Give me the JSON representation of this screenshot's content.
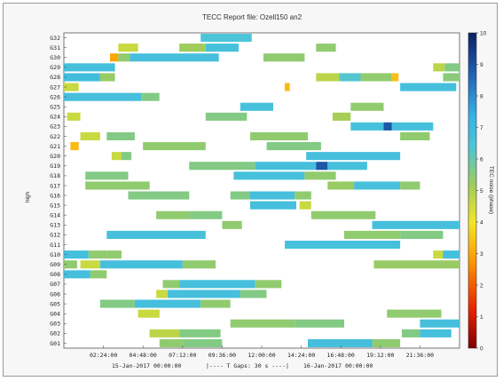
{
  "chart_data": {
    "type": "heatmap",
    "title": "TECC Report file: Ozell150 an2",
    "ylabel": "high",
    "colorbar_label": "TEC noise (phase)",
    "colorbar_range": [
      0,
      10
    ],
    "colorbar_ticks": [
      "0",
      "1",
      "2",
      "3",
      "4",
      "5",
      "6",
      "7",
      "8",
      "9",
      "10"
    ],
    "x_tick_labels": [
      "02:24:00",
      "04:48:00",
      "07:12:00",
      "09:36:00",
      "12:00:00",
      "14:24:00",
      "16:48:00",
      "19:12:00",
      "21:36:00"
    ],
    "x_ticks_hours": [
      2.4,
      4.8,
      7.2,
      9.6,
      12.0,
      14.4,
      16.8,
      19.2,
      21.6
    ],
    "xlim_hours": [
      0,
      24
    ],
    "footer": {
      "start": "15-Jan-2017 00:00:00",
      "gap": "|---- T Gaps: 30 s ----|",
      "end": "16-Jan-2017 00:00:00"
    },
    "rows": [
      "G32",
      "G31",
      "G30",
      "G29",
      "G28",
      "G27",
      "G26",
      "G25",
      "G24",
      "G23",
      "G22",
      "G21",
      "G20",
      "G19",
      "G18",
      "G17",
      "G16",
      "G15",
      "G14",
      "G13",
      "G12",
      "G11",
      "G10",
      "G09",
      "G08",
      "G07",
      "G06",
      "G05",
      "G04",
      "G03",
      "G02",
      "G01"
    ],
    "y_tick_labels": [
      "G32",
      "G31",
      "G30",
      "G29",
      "G28",
      "G27",
      "G26",
      "G25",
      "G24",
      "G23",
      "G22",
      "G21",
      "G20",
      "G19",
      "G18",
      "G17",
      "G16",
      "G15",
      "G14",
      "G13",
      "G12",
      "G11",
      "G10",
      "G09",
      "G08",
      "G07",
      "G06",
      "G05",
      "G04",
      "G03",
      "G02",
      "G01"
    ],
    "segments": [
      {
        "row": "G32",
        "start": 8.3,
        "end": 11.4,
        "value": 6.4
      },
      {
        "row": "G31",
        "start": 3.3,
        "end": 4.5,
        "value": 4.6
      },
      {
        "row": "G31",
        "start": 7.0,
        "end": 8.6,
        "value": 5.2
      },
      {
        "row": "G31",
        "start": 8.6,
        "end": 10.6,
        "value": 6.6
      },
      {
        "row": "G31",
        "start": 15.3,
        "end": 16.5,
        "value": 5.4
      },
      {
        "row": "G30",
        "start": 2.8,
        "end": 3.3,
        "value": 3.0
      },
      {
        "row": "G30",
        "start": 3.3,
        "end": 4.0,
        "value": 5.4
      },
      {
        "row": "G30",
        "start": 4.0,
        "end": 9.4,
        "value": 6.7
      },
      {
        "row": "G30",
        "start": 12.1,
        "end": 14.6,
        "value": 5.4
      },
      {
        "row": "G29",
        "start": 0.0,
        "end": 3.1,
        "value": 6.7
      },
      {
        "row": "G29",
        "start": 22.4,
        "end": 23.1,
        "value": 4.8
      },
      {
        "row": "G29",
        "start": 23.1,
        "end": 24.0,
        "value": 5.6
      },
      {
        "row": "G28",
        "start": 0.0,
        "end": 2.2,
        "value": 6.8
      },
      {
        "row": "G28",
        "start": 2.2,
        "end": 3.1,
        "value": 5.3
      },
      {
        "row": "G28",
        "start": 15.3,
        "end": 16.7,
        "value": 4.8
      },
      {
        "row": "G28",
        "start": 16.7,
        "end": 18.0,
        "value": 6.3
      },
      {
        "row": "G28",
        "start": 18.0,
        "end": 19.9,
        "value": 5.4
      },
      {
        "row": "G28",
        "start": 19.9,
        "end": 20.3,
        "value": 3.4
      },
      {
        "row": "G28",
        "start": 23.0,
        "end": 24.0,
        "value": 5.5
      },
      {
        "row": "G27",
        "start": 0.0,
        "end": 0.9,
        "value": 4.6
      },
      {
        "row": "G27",
        "start": 13.4,
        "end": 13.7,
        "value": 3.3
      },
      {
        "row": "G27",
        "start": 20.4,
        "end": 23.8,
        "value": 6.7
      },
      {
        "row": "G26",
        "start": 0.0,
        "end": 4.7,
        "value": 6.7
      },
      {
        "row": "G26",
        "start": 4.7,
        "end": 5.8,
        "value": 5.6
      },
      {
        "row": "G25",
        "start": 10.7,
        "end": 12.7,
        "value": 6.6
      },
      {
        "row": "G25",
        "start": 17.4,
        "end": 19.4,
        "value": 5.4
      },
      {
        "row": "G24",
        "start": 0.2,
        "end": 1.0,
        "value": 4.6
      },
      {
        "row": "G24",
        "start": 8.6,
        "end": 11.1,
        "value": 5.6
      },
      {
        "row": "G24",
        "start": 16.3,
        "end": 17.4,
        "value": 5.1
      },
      {
        "row": "G23",
        "start": 17.4,
        "end": 19.4,
        "value": 6.6
      },
      {
        "row": "G23",
        "start": 19.4,
        "end": 19.9,
        "value": 8.9
      },
      {
        "row": "G23",
        "start": 19.9,
        "end": 22.4,
        "value": 6.7
      },
      {
        "row": "G22",
        "start": 1.0,
        "end": 2.2,
        "value": 4.6
      },
      {
        "row": "G22",
        "start": 2.6,
        "end": 4.3,
        "value": 5.6
      },
      {
        "row": "G22",
        "start": 11.3,
        "end": 14.8,
        "value": 5.4
      },
      {
        "row": "G22",
        "start": 20.4,
        "end": 22.2,
        "value": 5.4
      },
      {
        "row": "G21",
        "start": 0.4,
        "end": 0.9,
        "value": 3.3
      },
      {
        "row": "G21",
        "start": 4.8,
        "end": 8.6,
        "value": 5.4
      },
      {
        "row": "G21",
        "start": 12.3,
        "end": 15.6,
        "value": 5.6
      },
      {
        "row": "G20",
        "start": 2.9,
        "end": 3.5,
        "value": 4.6
      },
      {
        "row": "G20",
        "start": 3.5,
        "end": 4.1,
        "value": 5.6
      },
      {
        "row": "G20",
        "start": 14.7,
        "end": 20.4,
        "value": 6.7
      },
      {
        "row": "G19",
        "start": 7.6,
        "end": 11.6,
        "value": 5.6
      },
      {
        "row": "G19",
        "start": 11.6,
        "end": 15.3,
        "value": 6.7
      },
      {
        "row": "G19",
        "start": 15.3,
        "end": 16.0,
        "value": 8.9
      },
      {
        "row": "G19",
        "start": 16.0,
        "end": 18.4,
        "value": 6.6
      },
      {
        "row": "G18",
        "start": 1.3,
        "end": 3.9,
        "value": 5.6
      },
      {
        "row": "G18",
        "start": 10.3,
        "end": 14.6,
        "value": 6.6
      },
      {
        "row": "G18",
        "start": 14.6,
        "end": 16.5,
        "value": 5.4
      },
      {
        "row": "G17",
        "start": 1.3,
        "end": 5.2,
        "value": 5.4
      },
      {
        "row": "G17",
        "start": 16.0,
        "end": 17.6,
        "value": 5.3
      },
      {
        "row": "G17",
        "start": 17.6,
        "end": 20.4,
        "value": 6.6
      },
      {
        "row": "G17",
        "start": 20.4,
        "end": 21.6,
        "value": 5.4
      },
      {
        "row": "G16",
        "start": 3.9,
        "end": 7.6,
        "value": 5.6
      },
      {
        "row": "G16",
        "start": 10.1,
        "end": 11.3,
        "value": 5.6
      },
      {
        "row": "G16",
        "start": 11.3,
        "end": 14.0,
        "value": 6.7
      },
      {
        "row": "G16",
        "start": 14.0,
        "end": 15.0,
        "value": 5.4
      },
      {
        "row": "G15",
        "start": 11.3,
        "end": 14.1,
        "value": 6.7
      },
      {
        "row": "G15",
        "start": 14.3,
        "end": 15.0,
        "value": 4.6
      },
      {
        "row": "G14",
        "start": 5.6,
        "end": 7.6,
        "value": 5.4
      },
      {
        "row": "G14",
        "start": 7.6,
        "end": 9.6,
        "value": 5.6
      },
      {
        "row": "G14",
        "start": 15.0,
        "end": 18.9,
        "value": 5.4
      },
      {
        "row": "G13",
        "start": 9.6,
        "end": 10.8,
        "value": 5.4
      },
      {
        "row": "G13",
        "start": 18.7,
        "end": 24.0,
        "value": 6.7
      },
      {
        "row": "G12",
        "start": 2.6,
        "end": 8.6,
        "value": 6.6
      },
      {
        "row": "G12",
        "start": 17.0,
        "end": 20.4,
        "value": 5.4
      },
      {
        "row": "G12",
        "start": 20.4,
        "end": 23.0,
        "value": 5.6
      },
      {
        "row": "G11",
        "start": 13.4,
        "end": 20.4,
        "value": 6.6
      },
      {
        "row": "G10",
        "start": 0.0,
        "end": 1.5,
        "value": 6.7
      },
      {
        "row": "G10",
        "start": 1.5,
        "end": 2.6,
        "value": 5.4
      },
      {
        "row": "G10",
        "start": 2.6,
        "end": 3.5,
        "value": 5.4
      },
      {
        "row": "G10",
        "start": 22.4,
        "end": 23.0,
        "value": 4.6
      },
      {
        "row": "G10",
        "start": 23.0,
        "end": 24.0,
        "value": 6.7
      },
      {
        "row": "G09",
        "start": 0.0,
        "end": 0.8,
        "value": 5.4
      },
      {
        "row": "G09",
        "start": 1.0,
        "end": 2.2,
        "value": 4.6
      },
      {
        "row": "G09",
        "start": 2.2,
        "end": 7.2,
        "value": 6.7
      },
      {
        "row": "G09",
        "start": 7.2,
        "end": 9.2,
        "value": 5.4
      },
      {
        "row": "G09",
        "start": 18.8,
        "end": 24.0,
        "value": 5.3
      },
      {
        "row": "G08",
        "start": 0.0,
        "end": 1.6,
        "value": 6.7
      },
      {
        "row": "G08",
        "start": 1.6,
        "end": 2.6,
        "value": 5.4
      },
      {
        "row": "G07",
        "start": 6.0,
        "end": 7.0,
        "value": 5.4
      },
      {
        "row": "G07",
        "start": 7.0,
        "end": 11.6,
        "value": 6.7
      },
      {
        "row": "G07",
        "start": 11.6,
        "end": 13.2,
        "value": 5.4
      },
      {
        "row": "G06",
        "start": 5.6,
        "end": 6.3,
        "value": 4.6
      },
      {
        "row": "G06",
        "start": 6.3,
        "end": 10.7,
        "value": 6.7
      },
      {
        "row": "G06",
        "start": 10.7,
        "end": 12.3,
        "value": 5.6
      },
      {
        "row": "G05",
        "start": 2.2,
        "end": 4.3,
        "value": 5.6
      },
      {
        "row": "G05",
        "start": 4.3,
        "end": 8.3,
        "value": 6.7
      },
      {
        "row": "G05",
        "start": 8.3,
        "end": 10.1,
        "value": 5.4
      },
      {
        "row": "G04",
        "start": 4.5,
        "end": 5.8,
        "value": 4.6
      },
      {
        "row": "G04",
        "start": 19.6,
        "end": 22.9,
        "value": 5.4
      },
      {
        "row": "G03",
        "start": 10.1,
        "end": 14.0,
        "value": 5.4
      },
      {
        "row": "G03",
        "start": 14.0,
        "end": 17.0,
        "value": 5.6
      },
      {
        "row": "G03",
        "start": 21.6,
        "end": 24.0,
        "value": 6.7
      },
      {
        "row": "G02",
        "start": 5.2,
        "end": 7.0,
        "value": 4.8
      },
      {
        "row": "G02",
        "start": 7.0,
        "end": 9.5,
        "value": 5.6
      },
      {
        "row": "G02",
        "start": 20.5,
        "end": 21.6,
        "value": 5.6
      },
      {
        "row": "G02",
        "start": 21.6,
        "end": 23.5,
        "value": 6.7
      },
      {
        "row": "G01",
        "start": 5.8,
        "end": 7.2,
        "value": 5.4
      },
      {
        "row": "G01",
        "start": 7.2,
        "end": 9.6,
        "value": 5.6
      },
      {
        "row": "G01",
        "start": 14.8,
        "end": 18.7,
        "value": 6.7
      },
      {
        "row": "G01",
        "start": 18.7,
        "end": 20.4,
        "value": 5.4
      }
    ]
  }
}
